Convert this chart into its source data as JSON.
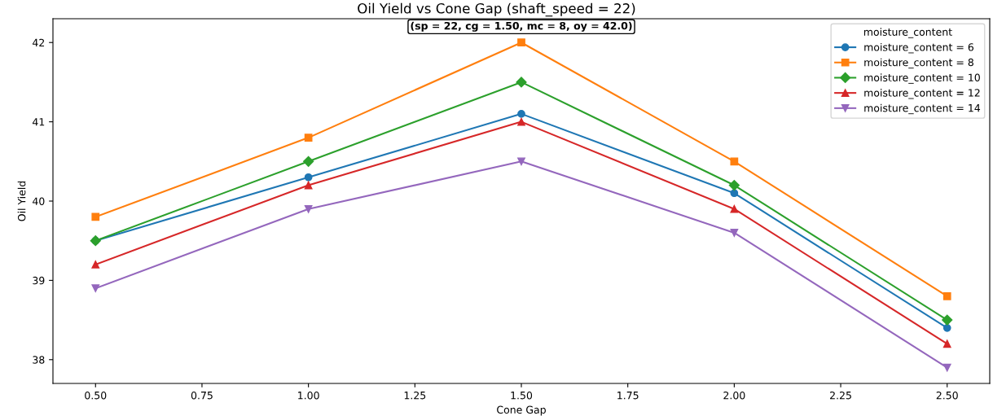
{
  "chart_data": {
    "type": "line",
    "title": "Oil Yield vs Cone Gap (shaft_speed = 22)",
    "xlabel": "Cone Gap",
    "ylabel": "Oil Yield",
    "legend_title": "moisture_content",
    "x": [
      0.5,
      1.0,
      1.5,
      2.0,
      2.5
    ],
    "series": [
      {
        "name": "moisture_content = 6",
        "color": "#1f77b4",
        "marker": "circle",
        "values": [
          39.5,
          40.3,
          41.1,
          40.1,
          38.4
        ]
      },
      {
        "name": "moisture_content = 8",
        "color": "#ff7f0e",
        "marker": "square",
        "values": [
          39.8,
          40.8,
          42.0,
          40.5,
          38.8
        ]
      },
      {
        "name": "moisture_content = 10",
        "color": "#2ca02c",
        "marker": "diamond",
        "values": [
          39.5,
          40.5,
          41.5,
          40.2,
          38.5
        ]
      },
      {
        "name": "moisture_content = 12",
        "color": "#d62728",
        "marker": "triangle",
        "values": [
          39.2,
          40.2,
          41.0,
          39.9,
          38.2
        ]
      },
      {
        "name": "moisture_content = 14",
        "color": "#9467bd",
        "marker": "triangle_down",
        "values": [
          38.9,
          39.9,
          40.5,
          39.6,
          37.9
        ]
      }
    ],
    "annotations": [
      {
        "text": "(sp = 22, cg = 1.50, mc = 8, oy = 42.0)",
        "x": 1.5,
        "y": 42.0
      }
    ],
    "xlim": [
      0.4,
      2.6
    ],
    "xticks": [
      {
        "value": 0.5,
        "label": "0.50"
      },
      {
        "value": 0.75,
        "label": "0.75"
      },
      {
        "value": 1.0,
        "label": "1.00"
      },
      {
        "value": 1.25,
        "label": "1.25"
      },
      {
        "value": 1.5,
        "label": "1.50"
      },
      {
        "value": 1.75,
        "label": "1.75"
      },
      {
        "value": 2.0,
        "label": "2.00"
      },
      {
        "value": 2.25,
        "label": "2.25"
      },
      {
        "value": 2.5,
        "label": "2.50"
      }
    ],
    "ylim": [
      37.7,
      42.3
    ],
    "yticks": [
      38,
      39,
      40,
      41,
      42
    ],
    "grid": false,
    "legend": "top right",
    "line_style": "solid"
  }
}
